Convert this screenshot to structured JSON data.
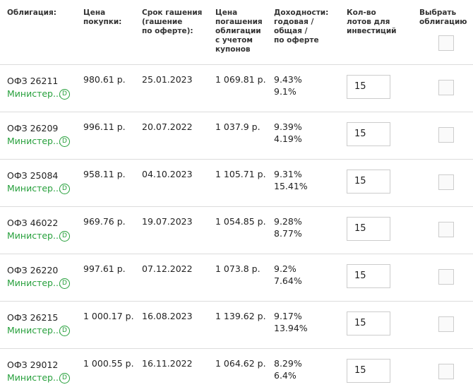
{
  "header": {
    "columns": [
      [
        "Облигация:"
      ],
      [
        "Цена",
        "покупки:"
      ],
      [
        "Срок гашения",
        "(гашение",
        "по оферте):"
      ],
      [
        "Цена",
        "погашения",
        "облигации",
        "с учетом",
        "купонов"
      ],
      [
        "Доходности:",
        "годовая /",
        "общая /",
        "по оферте"
      ],
      [
        "Кол-во",
        "лотов для",
        "инвестиций"
      ],
      [
        "Выбрать",
        "облигацию"
      ]
    ]
  },
  "table": {
    "rows": [
      {
        "name": "ОФЗ 26211",
        "issuer": "Министер...",
        "badge": "D",
        "price": "980.61 р.",
        "date": "25.01.2023",
        "redemption": "1 069.81 р.",
        "yield_annual": "9.43%",
        "yield_total": "9.1%",
        "lots": "15"
      },
      {
        "name": "ОФЗ 26209",
        "issuer": "Министер...",
        "badge": "D",
        "price": "996.11 р.",
        "date": "20.07.2022",
        "redemption": "1 037.9 р.",
        "yield_annual": "9.39%",
        "yield_total": "4.19%",
        "lots": "15"
      },
      {
        "name": "ОФЗ 25084",
        "issuer": "Министер...",
        "badge": "D",
        "price": "958.11 р.",
        "date": "04.10.2023",
        "redemption": "1 105.71 р.",
        "yield_annual": "9.31%",
        "yield_total": "15.41%",
        "lots": "15"
      },
      {
        "name": "ОФЗ 46022",
        "issuer": "Министер...",
        "badge": "D",
        "price": "969.76 р.",
        "date": "19.07.2023",
        "redemption": "1 054.85 р.",
        "yield_annual": "9.28%",
        "yield_total": "8.77%",
        "lots": "15"
      },
      {
        "name": "ОФЗ 26220",
        "issuer": "Министер...",
        "badge": "D",
        "price": "997.61 р.",
        "date": "07.12.2022",
        "redemption": "1 073.8 р.",
        "yield_annual": "9.2%",
        "yield_total": "7.64%",
        "lots": "15"
      },
      {
        "name": "ОФЗ 26215",
        "issuer": "Министер...",
        "badge": "D",
        "price": "1 000.17 р.",
        "date": "16.08.2023",
        "redemption": "1 139.62 р.",
        "yield_annual": "9.17%",
        "yield_total": "13.94%",
        "lots": "15"
      },
      {
        "name": "ОФЗ 29012",
        "issuer": "Министер...",
        "badge": "D",
        "price": "1 000.55 р.",
        "date": "16.11.2022",
        "redemption": "1 064.62 р.",
        "yield_annual": "8.29%",
        "yield_total": "6.4%",
        "lots": "15"
      }
    ]
  }
}
